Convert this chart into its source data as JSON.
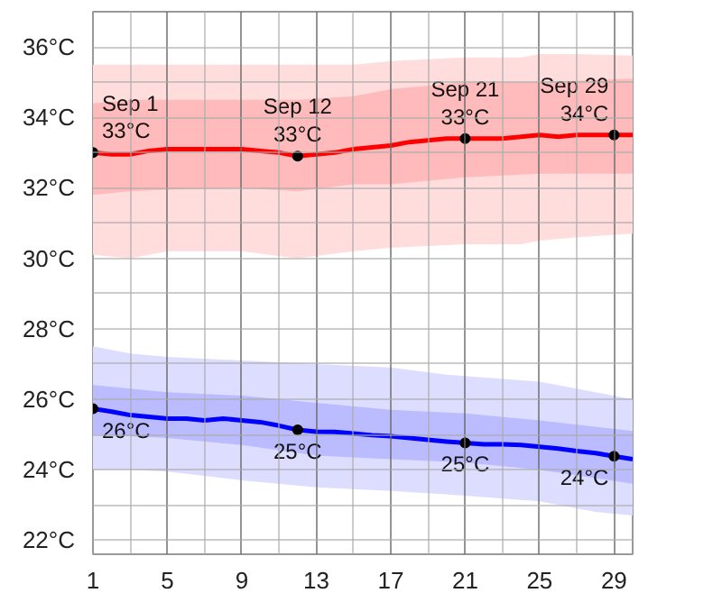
{
  "chart_data": {
    "type": "line",
    "x": [
      1,
      2,
      3,
      4,
      5,
      6,
      7,
      8,
      9,
      10,
      11,
      12,
      13,
      14,
      15,
      16,
      17,
      18,
      19,
      20,
      21,
      22,
      23,
      24,
      25,
      26,
      27,
      28,
      29,
      30
    ],
    "series": [
      {
        "color": "#ffdddd",
        "x": [
          1,
          3,
          5,
          9,
          12,
          15,
          17,
          21,
          24,
          25,
          27,
          30
        ],
        "values": [
          null,
          null,
          null,
          null,
          null,
          null,
          null,
          null,
          null,
          null,
          null,
          null
        ],
        "lower": [
          30.1,
          30.0,
          30.2,
          30.2,
          30.0,
          30.2,
          30.3,
          30.4,
          30.4,
          30.5,
          30.6,
          30.7
        ],
        "upper": [
          35.5,
          35.5,
          35.5,
          35.5,
          35.5,
          35.5,
          35.6,
          35.7,
          35.7,
          35.8,
          35.8,
          35.75
        ]
      },
      {
        "color": "#ffbbbb",
        "x": [
          1,
          3,
          5,
          9,
          12,
          15,
          17,
          21,
          25,
          30
        ],
        "values": [
          null,
          null,
          null,
          null,
          null,
          null,
          null,
          null,
          null,
          null
        ],
        "lower": [
          31.8,
          31.9,
          31.95,
          32.0,
          31.9,
          32.1,
          32.1,
          32.3,
          32.4,
          32.4
        ],
        "upper": [
          34.4,
          34.5,
          34.5,
          34.5,
          34.5,
          34.6,
          34.8,
          35.0,
          35.0,
          35.1
        ]
      },
      {
        "color": "#ff0000",
        "values": [
          33.0,
          32.95,
          32.95,
          33.05,
          33.1,
          33.1,
          33.1,
          33.1,
          33.1,
          33.05,
          33.0,
          32.9,
          32.95,
          33.0,
          33.1,
          33.15,
          33.2,
          33.3,
          33.35,
          33.4,
          33.4,
          33.4,
          33.4,
          33.45,
          33.5,
          33.45,
          33.5,
          33.5,
          33.5,
          33.5
        ]
      },
      {
        "color": "#ddddff",
        "x": [
          1,
          3,
          5,
          9,
          13,
          17,
          20,
          25,
          28,
          30
        ],
        "values": [
          null,
          null,
          null,
          null,
          null,
          null,
          null,
          null,
          null,
          null
        ],
        "lower": [
          24.0,
          24.0,
          23.95,
          23.7,
          23.5,
          23.4,
          23.3,
          23.1,
          22.8,
          22.7
        ],
        "upper": [
          27.5,
          27.3,
          27.2,
          27.1,
          27.0,
          26.9,
          26.7,
          26.5,
          26.2,
          26.0
        ]
      },
      {
        "color": "#bbbbff",
        "x": [
          1,
          5,
          9,
          13,
          17,
          21,
          25,
          30
        ],
        "values": [
          null,
          null,
          null,
          null,
          null,
          null,
          null,
          null
        ],
        "lower": [
          25.0,
          24.9,
          24.7,
          24.4,
          24.3,
          24.2,
          24.0,
          23.6
        ],
        "upper": [
          26.4,
          26.2,
          26.1,
          25.9,
          25.7,
          25.6,
          25.4,
          25.1
        ]
      },
      {
        "color": "#0000ff",
        "values": [
          25.73,
          25.65,
          25.55,
          25.5,
          25.45,
          25.45,
          25.4,
          25.45,
          25.4,
          25.35,
          25.25,
          25.13,
          25.08,
          25.07,
          25.03,
          24.98,
          24.95,
          24.9,
          24.85,
          24.8,
          24.76,
          24.72,
          24.72,
          24.7,
          24.65,
          24.6,
          24.53,
          24.47,
          24.38,
          24.3
        ]
      }
    ],
    "xlim": [
      1,
      30
    ],
    "xticks": [
      1,
      {
        "value": 3,
        "label": null
      },
      5,
      {
        "value": 7,
        "label": null
      },
      9,
      {
        "value": 11,
        "label": null
      },
      13,
      {
        "value": 15,
        "label": null
      },
      17,
      {
        "value": 19,
        "label": null
      },
      21,
      {
        "value": 23,
        "label": null
      },
      25,
      {
        "value": 27,
        "label": null
      },
      29
    ],
    "ylim": [
      21.6,
      37
    ],
    "yticks": [
      {
        "value": 22,
        "label": "22°C"
      },
      {
        "value": 23,
        "label": null
      },
      {
        "value": 24,
        "label": "24°C"
      },
      {
        "value": 25,
        "label": null
      },
      {
        "value": 26,
        "label": "26°C"
      },
      {
        "value": 27,
        "label": null
      },
      {
        "value": 28,
        "label": "28°C"
      },
      {
        "value": 29,
        "label": null
      },
      {
        "value": 30,
        "label": "30°C"
      },
      {
        "value": 31,
        "label": null
      },
      {
        "value": 32,
        "label": "32°C"
      },
      {
        "value": 33,
        "label": null
      },
      {
        "value": 34,
        "label": "34°C"
      },
      {
        "value": 35,
        "label": null
      },
      {
        "value": 36,
        "label": "36°C"
      },
      {
        "value": 37,
        "label": null
      }
    ],
    "grid": true,
    "marker": "none",
    "line_style": "solid",
    "annotations": [
      {
        "text": "Sep 1\n33°C",
        "x": 1,
        "y": 33.0
      },
      {
        "text": "Sep 12\n33°C",
        "x": 12,
        "y": 32.9
      },
      {
        "text": "Sep 21\n33°C",
        "x": 21,
        "y": 33.4
      },
      {
        "text": "Sep 29\n34°C",
        "x": 29,
        "y": 33.5
      },
      {
        "text": "26°C",
        "x": 1,
        "y": 25.73
      },
      {
        "text": "25°C",
        "x": 12,
        "y": 25.13
      },
      {
        "text": "25°C",
        "x": 21,
        "y": 24.76
      },
      {
        "text": "24°C",
        "x": 29,
        "y": 24.38
      }
    ]
  }
}
